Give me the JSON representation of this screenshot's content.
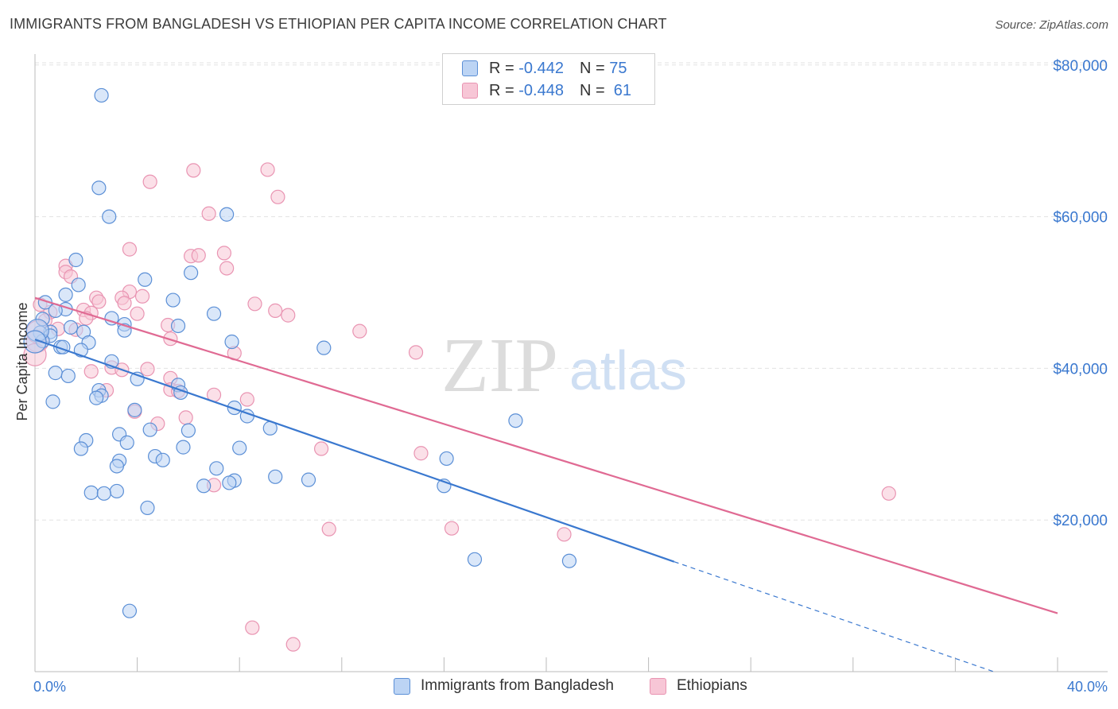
{
  "title": "IMMIGRANTS FROM BANGLADESH VS ETHIOPIAN PER CAPITA INCOME CORRELATION CHART",
  "source": "Source: ZipAtlas.com",
  "watermark": {
    "zip": "ZIP",
    "atlas": "atlas"
  },
  "legend_top": [
    {
      "r_label": "R =",
      "r_value": "-0.442",
      "n_label": "N =",
      "n_value": "75"
    },
    {
      "r_label": "R =",
      "r_value": "-0.448",
      "n_label": "N =",
      "n_value": "61"
    }
  ],
  "legend_bottom": [
    "Immigrants from Bangladesh",
    "Ethiopians"
  ],
  "colors": {
    "blue": "#3a78cf",
    "blue_fill": "#bcd4f4",
    "pink": "#e06a93",
    "pink_fill": "#f7c6d6",
    "grid": "#dedede",
    "tick_text": "#3a78cf"
  },
  "chart_data": {
    "type": "scatter",
    "xlabel": "",
    "ylabel": "Per Capita Income",
    "xlim": [
      0,
      40
    ],
    "ylim": [
      0,
      82000
    ],
    "x_tick_labels": [
      "0.0%",
      "40.0%"
    ],
    "y_ticks": [
      20000,
      40000,
      60000,
      80000
    ],
    "y_tick_labels": [
      "$20,000",
      "$40,000",
      "$60,000",
      "$80,000"
    ],
    "series": [
      {
        "name": "Immigrants from Bangladesh",
        "color": "#3a78cf",
        "trend": {
          "x0": 0,
          "y0": 43800,
          "x1": 25.0,
          "y1": 14500,
          "dash_to_x": 37.5,
          "dash_to_y": 0
        },
        "points": [
          [
            2.6,
            76000
          ],
          [
            2.5,
            63800
          ],
          [
            2.9,
            60000
          ],
          [
            7.5,
            60300
          ],
          [
            1.6,
            54300
          ],
          [
            6.1,
            52600
          ],
          [
            4.3,
            51700
          ],
          [
            1.7,
            51000
          ],
          [
            1.2,
            49700
          ],
          [
            0.4,
            48700
          ],
          [
            5.4,
            49000
          ],
          [
            1.2,
            47800
          ],
          [
            0.8,
            47600
          ],
          [
            7.0,
            47200
          ],
          [
            3.0,
            46600
          ],
          [
            0.3,
            46500
          ],
          [
            3.5,
            45800
          ],
          [
            1.4,
            45400
          ],
          [
            5.6,
            45600
          ],
          [
            3.5,
            45000
          ],
          [
            1.9,
            44800
          ],
          [
            0.6,
            44800
          ],
          [
            0.2,
            44700
          ],
          [
            0.6,
            44300
          ],
          [
            0.3,
            43600
          ],
          [
            7.7,
            43500
          ],
          [
            2.1,
            43400
          ],
          [
            1.0,
            42800
          ],
          [
            1.1,
            42800
          ],
          [
            11.3,
            42700
          ],
          [
            1.8,
            42400
          ],
          [
            3.0,
            40900
          ],
          [
            0.8,
            39400
          ],
          [
            1.3,
            39000
          ],
          [
            4.0,
            38600
          ],
          [
            5.6,
            37800
          ],
          [
            2.5,
            37100
          ],
          [
            5.7,
            36800
          ],
          [
            2.6,
            36400
          ],
          [
            2.4,
            36100
          ],
          [
            0.7,
            35600
          ],
          [
            7.8,
            34800
          ],
          [
            3.9,
            34500
          ],
          [
            8.3,
            33700
          ],
          [
            18.8,
            33100
          ],
          [
            9.2,
            32100
          ],
          [
            4.5,
            31900
          ],
          [
            6.0,
            31800
          ],
          [
            3.3,
            31300
          ],
          [
            2.0,
            30500
          ],
          [
            3.6,
            30200
          ],
          [
            5.8,
            29600
          ],
          [
            1.8,
            29400
          ],
          [
            8.0,
            29500
          ],
          [
            4.7,
            28400
          ],
          [
            3.3,
            27800
          ],
          [
            16.1,
            28100
          ],
          [
            5.0,
            27900
          ],
          [
            3.2,
            27100
          ],
          [
            7.1,
            26800
          ],
          [
            9.4,
            25700
          ],
          [
            10.7,
            25300
          ],
          [
            7.8,
            25200
          ],
          [
            7.6,
            24900
          ],
          [
            6.6,
            24500
          ],
          [
            16.0,
            24500
          ],
          [
            2.2,
            23600
          ],
          [
            3.2,
            23800
          ],
          [
            2.7,
            23500
          ],
          [
            4.4,
            21600
          ],
          [
            17.2,
            14800
          ],
          [
            20.9,
            14600
          ],
          [
            3.7,
            8000
          ],
          [
            0.1,
            45000
          ],
          [
            0.0,
            43500
          ]
        ]
      },
      {
        "name": "Ethiopians",
        "color": "#e06a93",
        "trend": {
          "x0": 0,
          "y0": 49300,
          "x1": 40.0,
          "y1": 7700
        },
        "points": [
          [
            9.1,
            66200
          ],
          [
            6.2,
            66100
          ],
          [
            4.5,
            64600
          ],
          [
            9.5,
            62600
          ],
          [
            6.8,
            60400
          ],
          [
            3.7,
            55700
          ],
          [
            6.1,
            54800
          ],
          [
            6.4,
            54900
          ],
          [
            7.4,
            55200
          ],
          [
            1.2,
            53500
          ],
          [
            7.5,
            53200
          ],
          [
            1.2,
            52700
          ],
          [
            1.4,
            52100
          ],
          [
            3.7,
            50100
          ],
          [
            4.2,
            49500
          ],
          [
            2.4,
            49300
          ],
          [
            3.4,
            49300
          ],
          [
            2.5,
            48800
          ],
          [
            3.5,
            48600
          ],
          [
            8.6,
            48500
          ],
          [
            0.2,
            48400
          ],
          [
            1.9,
            47700
          ],
          [
            2.2,
            47300
          ],
          [
            0.6,
            47400
          ],
          [
            9.4,
            47600
          ],
          [
            4.0,
            47200
          ],
          [
            9.9,
            47000
          ],
          [
            2.0,
            46600
          ],
          [
            0.4,
            46300
          ],
          [
            5.2,
            45700
          ],
          [
            0.9,
            45200
          ],
          [
            1.6,
            45100
          ],
          [
            12.7,
            44900
          ],
          [
            5.3,
            43900
          ],
          [
            0.1,
            43600
          ],
          [
            7.8,
            42000
          ],
          [
            14.9,
            42100
          ],
          [
            0.0,
            41800
          ],
          [
            3.0,
            40100
          ],
          [
            3.4,
            39800
          ],
          [
            4.4,
            39900
          ],
          [
            2.2,
            39600
          ],
          [
            5.3,
            38700
          ],
          [
            5.3,
            37200
          ],
          [
            2.8,
            37100
          ],
          [
            5.6,
            37000
          ],
          [
            7.0,
            36500
          ],
          [
            8.3,
            35900
          ],
          [
            3.9,
            34300
          ],
          [
            5.9,
            33500
          ],
          [
            4.8,
            32700
          ],
          [
            11.2,
            29400
          ],
          [
            15.1,
            28800
          ],
          [
            7.0,
            24600
          ],
          [
            33.4,
            23500
          ],
          [
            11.5,
            18800
          ],
          [
            16.3,
            18900
          ],
          [
            20.7,
            18100
          ],
          [
            8.5,
            5800
          ],
          [
            10.1,
            3600
          ],
          [
            0.1,
            44800
          ]
        ]
      }
    ]
  }
}
